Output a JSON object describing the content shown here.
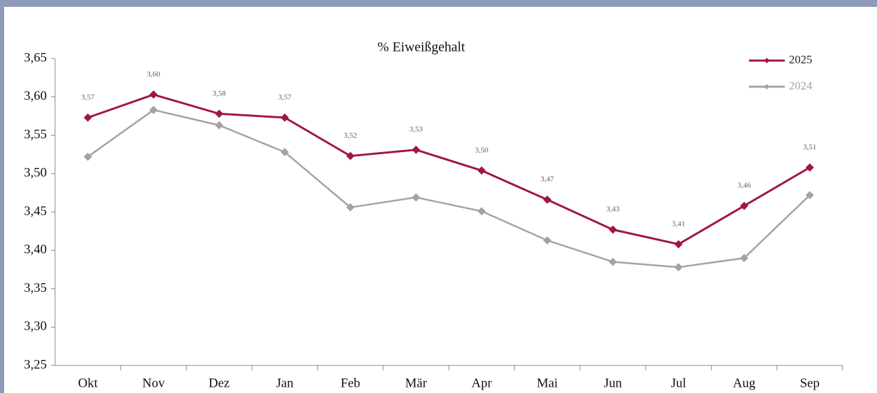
{
  "chart_data": {
    "type": "line",
    "title": "% Eiweißgehalt",
    "categories": [
      "Okt",
      "Nov",
      "Dez",
      "Jan",
      "Feb",
      "Mär",
      "Apr",
      "Mai",
      "Jun",
      "Jul",
      "Aug",
      "Sep"
    ],
    "series": [
      {
        "name": "2025",
        "color": "#a0173f",
        "values": [
          3.573,
          3.603,
          3.578,
          3.573,
          3.523,
          3.531,
          3.504,
          3.466,
          3.427,
          3.408,
          3.458,
          3.508
        ],
        "value_labels": [
          "3,57",
          "3,60",
          "3,58",
          "3,57",
          "3,52",
          "3,53",
          "3,50",
          "3,47",
          "3,43",
          "3,41",
          "3,46",
          "3,51"
        ]
      },
      {
        "name": "2024",
        "color": "#a3a3a3",
        "values": [
          3.522,
          3.583,
          3.563,
          3.528,
          3.456,
          3.469,
          3.451,
          3.413,
          3.385,
          3.378,
          3.39,
          3.472
        ]
      }
    ],
    "ylim": [
      3.25,
      3.65
    ],
    "yticks": [
      {
        "value": 3.25,
        "label": "3,25"
      },
      {
        "value": 3.3,
        "label": "3,30"
      },
      {
        "value": 3.35,
        "label": "3,35"
      },
      {
        "value": 3.4,
        "label": "3,40"
      },
      {
        "value": 3.45,
        "label": "3,45"
      },
      {
        "value": 3.5,
        "label": "3,50"
      },
      {
        "value": 3.55,
        "label": "3,55"
      },
      {
        "value": 3.6,
        "label": "3,60"
      },
      {
        "value": 3.65,
        "label": "3,65"
      }
    ],
    "grid": false,
    "legend": "top-right"
  }
}
